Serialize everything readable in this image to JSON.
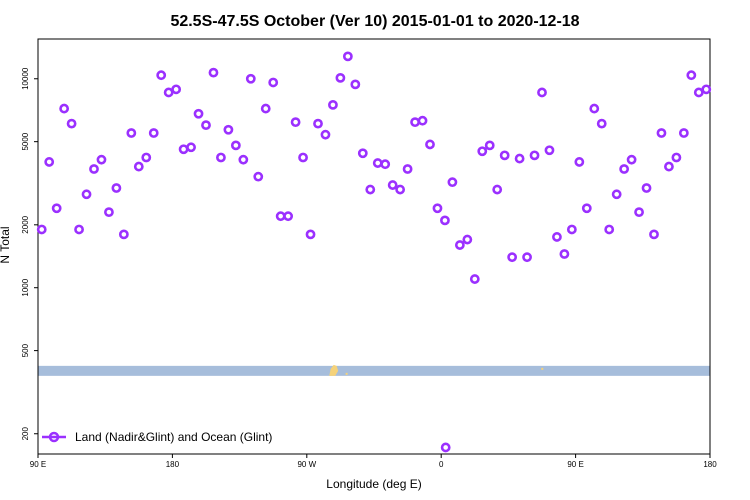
{
  "chart_data": {
    "type": "scatter",
    "title": "52.5S-47.5S October (Ver 10)   2015-01-01 to 2020-12-18",
    "xlabel": "Longitude (deg E)",
    "ylabel": "N Total",
    "y_scale": "log",
    "xlim": [
      90,
      540
    ],
    "ylim": [
      160,
      15500
    ],
    "x_ticks": [
      {
        "value": 90,
        "label": "90 E"
      },
      {
        "value": 180,
        "label": "180"
      },
      {
        "value": 270,
        "label": "90 W"
      },
      {
        "value": 360,
        "label": "0"
      },
      {
        "value": 450,
        "label": "90 E"
      },
      {
        "value": 540,
        "label": "180"
      }
    ],
    "y_ticks": [
      {
        "value": 200,
        "label": "200"
      },
      {
        "value": 500,
        "label": "500"
      },
      {
        "value": 1000,
        "label": "1000"
      },
      {
        "value": 2000,
        "label": "2000"
      },
      {
        "value": 5000,
        "label": "5000"
      },
      {
        "value": 10000,
        "label": "10000"
      }
    ],
    "grid": false,
    "legend_position": "bottom-left",
    "series": [
      {
        "name": "Land (Nadir&Glint) and Ocean (Glint)",
        "color": "#9b30ff",
        "marker": "open-circle",
        "x": [
          92.5,
          97.5,
          102.5,
          107.5,
          112.5,
          117.5,
          122.5,
          127.5,
          132.5,
          137.5,
          142.5,
          147.5,
          152.5,
          157.5,
          162.5,
          167.5,
          172.5,
          177.5,
          182.5,
          187.5,
          192.5,
          197.5,
          202.5,
          207.5,
          212.5,
          217.5,
          222.5,
          227.5,
          232.5,
          237.5,
          242.5,
          247.5,
          252.5,
          257.5,
          262.5,
          267.5,
          272.5,
          277.5,
          282.5,
          287.5,
          292.5,
          297.5,
          302.5,
          307.5,
          312.5,
          317.5,
          322.5,
          327.5,
          332.5,
          337.5,
          342.5,
          347.5,
          352.5,
          357.5,
          362.5,
          367.5,
          372.5,
          377.5,
          382.5,
          387.5,
          392.5,
          397.5,
          402.5,
          407.5,
          412.5,
          417.5,
          422.5,
          427.5,
          432.5,
          437.5,
          442.5,
          447.5,
          452.5,
          457.5,
          462.5,
          467.5,
          472.5,
          477.5,
          482.5,
          487.5,
          492.5,
          497.5,
          502.5,
          507.5,
          512.5,
          517.5,
          522.5,
          527.5,
          532.5,
          537.5
        ],
        "y": [
          1900,
          4000,
          2400,
          7200,
          6100,
          1900,
          2800,
          3700,
          4100,
          2300,
          3000,
          1800,
          5500,
          3800,
          4200,
          5500,
          10400,
          8600,
          8900,
          4600,
          4700,
          6800,
          6000,
          10700,
          4200,
          5700,
          4800,
          4100,
          10000,
          3400,
          7200,
          9600,
          2200,
          2200,
          6200,
          4200,
          1800,
          6100,
          5400,
          7500,
          10100,
          12800,
          9400,
          4400,
          2950,
          3950,
          3900,
          3100,
          2950,
          3700,
          6200,
          6300,
          4850,
          2400,
          2100,
          3200,
          1600,
          1700,
          1100,
          4500,
          4800,
          2950,
          4300,
          1400,
          4150,
          1400,
          4300,
          8600,
          4550,
          1750,
          1450,
          1900,
          4000,
          2400,
          7200,
          6100,
          1900,
          2800,
          3700,
          4100,
          2300,
          3000,
          1800,
          5500,
          3800,
          4200,
          5500,
          10400,
          8600,
          8900
        ]
      }
    ],
    "extra_points": [
      {
        "x": 363,
        "y": 172
      }
    ],
    "legend": [
      {
        "label": "Land (Nadir&Glint) and Ocean (Glint)",
        "color": "#9b30ff"
      }
    ],
    "map_strip": {
      "y_value": 400,
      "ocean_color": "#a6bddb",
      "land_color": "#f5d27a"
    }
  }
}
